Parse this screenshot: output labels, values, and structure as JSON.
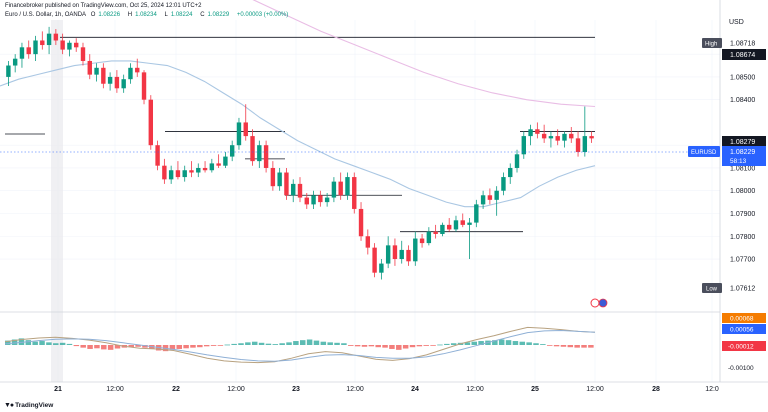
{
  "header": {
    "published_line": "Financebroker published on TradingView.com, Oct 25, 2024 12:01 UTC+2",
    "symbol_line": "Euro / U.S. Dollar, 1h, OANDA",
    "ohlc": [
      {
        "k": "O",
        "v": "1.08226"
      },
      {
        "k": "H",
        "v": "1.08234"
      },
      {
        "k": "L",
        "v": "1.08224"
      },
      {
        "k": "C",
        "v": "1.08229"
      },
      {
        "k": "",
        "v": "+0.00003 (+0.00%)"
      }
    ]
  },
  "axis": {
    "currency": "USD",
    "price_ticks": [
      "1.08600",
      "1.08500",
      "1.08400",
      "1.08200",
      "1.08100",
      "1.08000",
      "1.07900",
      "1.07800",
      "1.07700"
    ],
    "price_tick_values": [
      1.086,
      1.085,
      1.084,
      1.082,
      1.081,
      1.08,
      1.079,
      1.078,
      1.077
    ],
    "macd_ticks": [
      "-0.00100"
    ],
    "time_ticks": [
      {
        "label": "21",
        "bold": true
      },
      {
        "label": "12:00",
        "bold": false
      },
      {
        "label": "22",
        "bold": true
      },
      {
        "label": "12:00",
        "bold": false
      },
      {
        "label": "23",
        "bold": true
      },
      {
        "label": "12:00",
        "bold": false
      },
      {
        "label": "24",
        "bold": true
      },
      {
        "label": "12:00",
        "bold": false
      },
      {
        "label": "25",
        "bold": true
      },
      {
        "label": "12:00",
        "bold": false
      },
      {
        "label": "28",
        "bold": true
      },
      {
        "label": "12:0",
        "bold": false
      }
    ]
  },
  "labels": {
    "high_tag": "High",
    "high_value": "1.08718",
    "price_1": "1.08674",
    "price_2": "1.08279",
    "symbol_tag": "EURUSD",
    "current_price": "1.08229",
    "countdown": "58:13",
    "low_tag": "Low",
    "low_value": "1.07612",
    "macd_1": "0.00068",
    "macd_2": "0.00056",
    "macd_3": "-0.00012"
  },
  "colors": {
    "up": "#089981",
    "down": "#f23645",
    "ma_fast": "#aac7e3",
    "ma_slow": "#e9bde5",
    "macd_line": "#b8a280",
    "signal_line": "#8fb0d6",
    "tag_dark": "#4a4e5c",
    "tag_blue": "#2962ff",
    "tag_orange": "#f57c00",
    "tag_red": "#f23645"
  },
  "watermark": "TradingView",
  "chart_data": {
    "type": "candlestick",
    "timeframe": "1h",
    "ylim": [
      1.0752,
      1.0875
    ],
    "candles_ohlc": [
      [
        1.085,
        1.0857,
        1.0846,
        1.0855
      ],
      [
        1.0855,
        1.086,
        1.0852,
        1.0858
      ],
      [
        1.0858,
        1.0865,
        1.0854,
        1.0863
      ],
      [
        1.0863,
        1.0866,
        1.0858,
        1.086
      ],
      [
        1.086,
        1.0868,
        1.0857,
        1.0866
      ],
      [
        1.0866,
        1.087,
        1.0862,
        1.0864
      ],
      [
        1.0864,
        1.0872,
        1.086,
        1.0869
      ],
      [
        1.0869,
        1.0871,
        1.0864,
        1.0866
      ],
      [
        1.0866,
        1.0869,
        1.086,
        1.0862
      ],
      [
        1.0862,
        1.0866,
        1.0859,
        1.0865
      ],
      [
        1.0865,
        1.0867,
        1.0861,
        1.0863
      ],
      [
        1.0863,
        1.0865,
        1.0855,
        1.0857
      ],
      [
        1.0857,
        1.086,
        1.0849,
        1.0851
      ],
      [
        1.0851,
        1.0856,
        1.0848,
        1.0854
      ],
      [
        1.0854,
        1.0856,
        1.0845,
        1.0847
      ],
      [
        1.0847,
        1.0852,
        1.0844,
        1.085
      ],
      [
        1.085,
        1.0853,
        1.0843,
        1.0845
      ],
      [
        1.0845,
        1.0851,
        1.0843,
        1.0849
      ],
      [
        1.0849,
        1.0856,
        1.0847,
        1.0854
      ],
      [
        1.0854,
        1.0858,
        1.085,
        1.0852
      ],
      [
        1.0852,
        1.0853,
        1.0838,
        1.084
      ],
      [
        1.084,
        1.0842,
        1.0818,
        1.082
      ],
      [
        1.082,
        1.0822,
        1.0809,
        1.0811
      ],
      [
        1.0811,
        1.0814,
        1.0803,
        1.0805
      ],
      [
        1.0805,
        1.0811,
        1.0803,
        1.0809
      ],
      [
        1.0809,
        1.0813,
        1.0805,
        1.0806
      ],
      [
        1.0806,
        1.0811,
        1.0804,
        1.0809
      ],
      [
        1.0809,
        1.0813,
        1.0806,
        1.0808
      ],
      [
        1.0808,
        1.0812,
        1.0806,
        1.081
      ],
      [
        1.081,
        1.0813,
        1.0808,
        1.0809
      ],
      [
        1.0809,
        1.0814,
        1.0808,
        1.0812
      ],
      [
        1.0812,
        1.0816,
        1.081,
        1.0811
      ],
      [
        1.0811,
        1.0817,
        1.081,
        1.0815
      ],
      [
        1.0815,
        1.0822,
        1.0813,
        1.082
      ],
      [
        1.082,
        1.0832,
        1.0818,
        1.083
      ],
      [
        1.083,
        1.0838,
        1.0822,
        1.0824
      ],
      [
        1.0824,
        1.0827,
        1.0811,
        1.0813
      ],
      [
        1.0813,
        1.0822,
        1.081,
        1.082
      ],
      [
        1.082,
        1.0822,
        1.0808,
        1.081
      ],
      [
        1.081,
        1.0813,
        1.08,
        1.0802
      ],
      [
        1.0802,
        1.081,
        1.08,
        1.0808
      ],
      [
        1.0808,
        1.081,
        1.0796,
        1.0798
      ],
      [
        1.0798,
        1.0805,
        1.0795,
        1.0803
      ],
      [
        1.0803,
        1.0806,
        1.0795,
        1.0797
      ],
      [
        1.0797,
        1.0799,
        1.0792,
        1.0794
      ],
      [
        1.0794,
        1.08,
        1.0792,
        1.0798
      ],
      [
        1.0798,
        1.08,
        1.0793,
        1.0795
      ],
      [
        1.0795,
        1.0799,
        1.0793,
        1.0797
      ],
      [
        1.0797,
        1.0806,
        1.0795,
        1.0804
      ],
      [
        1.0804,
        1.0808,
        1.0796,
        1.0798
      ],
      [
        1.0798,
        1.0808,
        1.0796,
        1.0806
      ],
      [
        1.0806,
        1.0808,
        1.079,
        1.0792
      ],
      [
        1.0792,
        1.0795,
        1.0778,
        1.078
      ],
      [
        1.078,
        1.0783,
        1.0772,
        1.0775
      ],
      [
        1.0775,
        1.0777,
        1.0762,
        1.0764
      ],
      [
        1.0764,
        1.077,
        1.0761,
        1.0768
      ],
      [
        1.0768,
        1.078,
        1.0766,
        1.0776
      ],
      [
        1.0776,
        1.0779,
        1.0767,
        1.077
      ],
      [
        1.077,
        1.0778,
        1.0768,
        1.0774
      ],
      [
        1.0774,
        1.0776,
        1.0767,
        1.0769
      ],
      [
        1.0769,
        1.0782,
        1.0767,
        1.0779
      ],
      [
        1.0779,
        1.0781,
        1.0775,
        1.0777
      ],
      [
        1.0777,
        1.0784,
        1.0776,
        1.0782
      ],
      [
        1.0782,
        1.0785,
        1.0779,
        1.0781
      ],
      [
        1.0781,
        1.0786,
        1.078,
        1.0785
      ],
      [
        1.0785,
        1.0788,
        1.0782,
        1.0783
      ],
      [
        1.0783,
        1.0789,
        1.0782,
        1.0787
      ],
      [
        1.0787,
        1.079,
        1.0784,
        1.0785
      ],
      [
        1.0785,
        1.0788,
        1.077,
        1.0786
      ],
      [
        1.0786,
        1.0796,
        1.0784,
        1.0794
      ],
      [
        1.0794,
        1.08,
        1.0792,
        1.0798
      ],
      [
        1.0798,
        1.0801,
        1.0794,
        1.0796
      ],
      [
        1.0796,
        1.0802,
        1.0789,
        1.08
      ],
      [
        1.08,
        1.0808,
        1.0798,
        1.0806
      ],
      [
        1.0806,
        1.0812,
        1.0803,
        1.081
      ],
      [
        1.081,
        1.0818,
        1.0808,
        1.0816
      ],
      [
        1.0816,
        1.0826,
        1.0814,
        1.0824
      ],
      [
        1.0824,
        1.0829,
        1.082,
        1.0827
      ],
      [
        1.0827,
        1.083,
        1.0823,
        1.0825
      ],
      [
        1.0825,
        1.0829,
        1.0821,
        1.0823
      ],
      [
        1.0823,
        1.0826,
        1.0819,
        1.0824
      ],
      [
        1.0824,
        1.0827,
        1.082,
        1.0822
      ],
      [
        1.0822,
        1.0826,
        1.0819,
        1.0825
      ],
      [
        1.0825,
        1.0828,
        1.0821,
        1.0823
      ],
      [
        1.0823,
        1.0826,
        1.0815,
        1.0817
      ],
      [
        1.0817,
        1.0837,
        1.0815,
        1.0824
      ],
      [
        1.0824,
        1.0826,
        1.0821,
        1.0823
      ]
    ],
    "ma_fast": [
      1.0846,
      1.0849,
      1.0851,
      1.0853,
      1.0855,
      1.0856,
      1.0857,
      1.0857,
      1.0856,
      1.0855,
      1.0852,
      1.0848,
      1.0843,
      1.0838,
      1.0832,
      1.0827,
      1.0822,
      1.0818,
      1.0814,
      1.0811,
      1.0808,
      1.0805,
      1.0801,
      1.0798,
      1.0795,
      1.0793,
      1.0793,
      1.0795,
      1.0797,
      1.0802,
      1.0806,
      1.0809,
      1.0811
    ],
    "ma_slow": [
      1.0905,
      1.0898,
      1.0891,
      1.0884,
      1.0877,
      1.087,
      1.0864,
      1.0858,
      1.0852,
      1.0847,
      1.0843,
      1.084,
      1.0838,
      1.0837
    ],
    "levels": [
      1.08674,
      1.0826,
      1.0814,
      1.0798,
      1.0782
    ],
    "macd": [
      0.00015,
      0.00025,
      0.00032,
      0.00035,
      0.0003,
      0.00022,
      0.0001,
      -5e-05,
      -0.00015,
      -0.00018,
      -0.00025,
      -0.00042,
      -0.0006,
      -0.00072,
      -0.00078,
      -0.0008,
      -0.00076,
      -0.0006,
      -0.0004,
      -0.0003,
      -0.00035,
      -0.0005,
      -0.00065,
      -0.0007,
      -0.00062,
      -0.00045,
      -0.0002,
      5e-05,
      0.00025,
      0.00042,
      0.00062,
      0.0008,
      0.00076,
      0.0007,
      0.00062,
      0.00058
    ],
    "signal": [
      5e-05,
      0.00012,
      0.0002,
      0.00026,
      0.00028,
      0.00026,
      0.0002,
      0.0001,
      0.0,
      -0.0001,
      -0.0002,
      -0.00032,
      -0.00045,
      -0.00056,
      -0.00066,
      -0.00072,
      -0.00074,
      -0.00068,
      -0.00056,
      -0.00046,
      -0.00044,
      -0.00048,
      -0.00056,
      -0.0006,
      -0.0006,
      -0.00054,
      -0.0004,
      -0.00022,
      -2e-05,
      0.00018,
      0.00038,
      0.00056,
      0.00064,
      0.00066,
      0.00062,
      0.00058
    ],
    "histogram": [
      0.0002,
      0.00025,
      0.0003,
      0.00022,
      0.00015,
      0.00018,
      0.00012,
      8e-05,
      0.0001,
      5e-05,
      -5e-05,
      -0.00012,
      -0.00018,
      -0.00015,
      -0.0002,
      -0.00022,
      -0.00016,
      -0.00012,
      -0.0001,
      -8e-05,
      -0.00012,
      -0.00018,
      -0.00025,
      -0.00028,
      -0.00022,
      -0.00018,
      -0.00015,
      -0.00012,
      -0.0001,
      -6e-05,
      -4e-05,
      -3e-05,
      2e-05,
      5e-05,
      8e-05,
      0.00012,
      0.00015,
      0.0001,
      6e-05,
      4e-05,
      8e-05,
      0.00012,
      0.00018,
      0.00022,
      0.00025,
      0.0002,
      0.00015,
      0.00012,
      0.0001,
      8e-05,
      -4e-05,
      -6e-05,
      -8e-05,
      -6e-05,
      -0.0001,
      -0.00012,
      -0.00018,
      -0.00022,
      -0.00016,
      -0.0001,
      -6e-05,
      -4e-05,
      -2e-05,
      2e-05,
      5e-05,
      8e-05,
      0.0001,
      0.00012,
      0.00015,
      0.00018,
      0.0002,
      0.00022,
      0.00025,
      0.00022,
      0.00018,
      0.00015,
      0.00012,
      8e-05,
      4e-05,
      -3e-05,
      -6e-05,
      -8e-05,
      -0.0001,
      -0.00012,
      -0.00012,
      -0.00012
    ]
  }
}
